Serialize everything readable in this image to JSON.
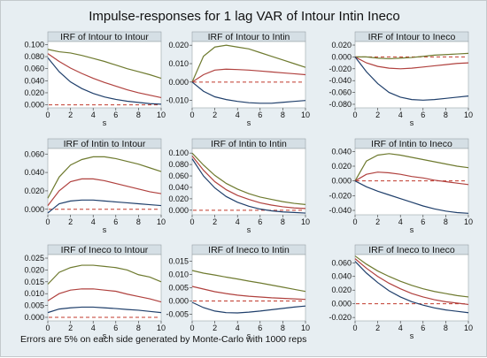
{
  "title": "Impulse-responses for 1 lag VAR of Intour Intin Ineco",
  "footnote": "Errors are 5% on each side generated by Monte-Carlo with 1000 reps",
  "colors": {
    "background": "#e7eef2",
    "plot_bg": "#ffffff",
    "title_band": "#d5dfe5",
    "upper": "#6e7a2f",
    "irf": "#b0413e",
    "lower": "#1f3f6b",
    "zero": "#c0392b"
  },
  "chart_data": [
    {
      "type": "line",
      "title": "IRF of Intour to Intour",
      "xlabel": "s",
      "x": [
        0,
        1,
        2,
        3,
        4,
        5,
        6,
        7,
        8,
        9,
        10
      ],
      "xticks": [
        "0",
        "2",
        "4",
        "6",
        "8",
        "10"
      ],
      "ylim": [
        -0.005,
        0.105
      ],
      "yticks": [
        "0.000",
        "0.020",
        "0.040",
        "0.060",
        "0.080",
        "0.100"
      ],
      "ytick_values": [
        0,
        0.02,
        0.04,
        0.06,
        0.08,
        0.1
      ],
      "series": [
        {
          "role": "upper",
          "values": [
            0.092,
            0.088,
            0.086,
            0.082,
            0.077,
            0.072,
            0.066,
            0.06,
            0.055,
            0.05,
            0.044
          ]
        },
        {
          "role": "irf",
          "values": [
            0.085,
            0.072,
            0.061,
            0.052,
            0.044,
            0.037,
            0.031,
            0.025,
            0.02,
            0.016,
            0.012
          ]
        },
        {
          "role": "lower",
          "values": [
            0.078,
            0.055,
            0.038,
            0.027,
            0.019,
            0.013,
            0.009,
            0.006,
            0.004,
            0.002,
            0.001
          ]
        }
      ]
    },
    {
      "type": "line",
      "title": "IRF of Intour to Intin",
      "xlabel": "s",
      "x": [
        0,
        1,
        2,
        3,
        4,
        5,
        6,
        7,
        8,
        9,
        10
      ],
      "xticks": [
        "0",
        "2",
        "4",
        "6",
        "8",
        "10"
      ],
      "ylim": [
        -0.014,
        0.022
      ],
      "yticks": [
        "-0.010",
        "0.000",
        "0.010",
        "0.020"
      ],
      "ytick_values": [
        -0.01,
        0,
        0.01,
        0.02
      ],
      "series": [
        {
          "role": "upper",
          "values": [
            0.0,
            0.014,
            0.019,
            0.02,
            0.019,
            0.018,
            0.016,
            0.014,
            0.012,
            0.01,
            0.008
          ]
        },
        {
          "role": "irf",
          "values": [
            0.0,
            0.004,
            0.0065,
            0.007,
            0.0068,
            0.0065,
            0.006,
            0.0055,
            0.005,
            0.0045,
            0.004
          ]
        },
        {
          "role": "lower",
          "values": [
            0.0,
            -0.005,
            -0.008,
            -0.0095,
            -0.0105,
            -0.0112,
            -0.0115,
            -0.0115,
            -0.011,
            -0.0105,
            -0.01
          ]
        }
      ]
    },
    {
      "type": "line",
      "title": "IRF of Intour to Ineco",
      "xlabel": "s",
      "x": [
        0,
        1,
        2,
        3,
        4,
        5,
        6,
        7,
        8,
        9,
        10
      ],
      "xticks": [
        "0",
        "2",
        "4",
        "6",
        "8",
        "10"
      ],
      "ylim": [
        -0.086,
        0.026
      ],
      "yticks": [
        "-0.080",
        "-0.060",
        "-0.040",
        "-0.020",
        "0.000",
        "0.020"
      ],
      "ytick_values": [
        -0.08,
        -0.06,
        -0.04,
        -0.02,
        0,
        0.02
      ],
      "series": [
        {
          "role": "upper",
          "values": [
            0.0,
            0.0,
            -0.002,
            -0.003,
            -0.002,
            -0.001,
            0.001,
            0.003,
            0.004,
            0.005,
            0.006
          ]
        },
        {
          "role": "irf",
          "values": [
            0.0,
            -0.01,
            -0.016,
            -0.019,
            -0.02,
            -0.019,
            -0.017,
            -0.015,
            -0.013,
            -0.011,
            -0.01
          ]
        },
        {
          "role": "lower",
          "values": [
            0.0,
            -0.025,
            -0.045,
            -0.06,
            -0.068,
            -0.072,
            -0.073,
            -0.072,
            -0.07,
            -0.068,
            -0.066
          ]
        }
      ]
    },
    {
      "type": "line",
      "title": "IRF of Intin to Intour",
      "xlabel": "s",
      "x": [
        0,
        1,
        2,
        3,
        4,
        5,
        6,
        7,
        8,
        9,
        10
      ],
      "xticks": [
        "0",
        "2",
        "4",
        "6",
        "8",
        "10"
      ],
      "ylim": [
        -0.006,
        0.066
      ],
      "yticks": [
        "0.000",
        "0.020",
        "0.040",
        "0.060"
      ],
      "ytick_values": [
        0,
        0.02,
        0.04,
        0.06
      ],
      "series": [
        {
          "role": "upper",
          "values": [
            0.012,
            0.035,
            0.048,
            0.054,
            0.057,
            0.057,
            0.055,
            0.052,
            0.049,
            0.045,
            0.041
          ]
        },
        {
          "role": "irf",
          "values": [
            0.004,
            0.02,
            0.03,
            0.033,
            0.033,
            0.031,
            0.028,
            0.025,
            0.022,
            0.019,
            0.017
          ]
        },
        {
          "role": "lower",
          "values": [
            -0.004,
            0.006,
            0.009,
            0.01,
            0.01,
            0.009,
            0.008,
            0.007,
            0.006,
            0.005,
            0.004
          ]
        }
      ]
    },
    {
      "type": "line",
      "title": "IRF of Intin to Intin",
      "xlabel": "s",
      "x": [
        0,
        1,
        2,
        3,
        4,
        5,
        6,
        7,
        8,
        9,
        10
      ],
      "xticks": [
        "0",
        "2",
        "4",
        "6",
        "8",
        "10"
      ],
      "ylim": [
        -0.008,
        0.108
      ],
      "yticks": [
        "0.000",
        "0.020",
        "0.040",
        "0.060",
        "0.080",
        "0.100"
      ],
      "ytick_values": [
        0,
        0.02,
        0.04,
        0.06,
        0.08,
        0.1
      ],
      "series": [
        {
          "role": "upper",
          "values": [
            0.1,
            0.079,
            0.061,
            0.047,
            0.037,
            0.029,
            0.023,
            0.019,
            0.015,
            0.012,
            0.01
          ]
        },
        {
          "role": "irf",
          "values": [
            0.095,
            0.07,
            0.05,
            0.036,
            0.026,
            0.019,
            0.013,
            0.009,
            0.006,
            0.004,
            0.003
          ]
        },
        {
          "role": "lower",
          "values": [
            0.09,
            0.06,
            0.039,
            0.024,
            0.014,
            0.007,
            0.002,
            -0.001,
            -0.003,
            -0.004,
            -0.005
          ]
        }
      ]
    },
    {
      "type": "line",
      "title": "IRF of Intin to Ineco",
      "xlabel": "s",
      "x": [
        0,
        1,
        2,
        3,
        4,
        5,
        6,
        7,
        8,
        9,
        10
      ],
      "xticks": [
        "0",
        "2",
        "4",
        "6",
        "8",
        "10"
      ],
      "ylim": [
        -0.046,
        0.044
      ],
      "yticks": [
        "-0.040",
        "-0.020",
        "0.000",
        "0.020",
        "0.040"
      ],
      "ytick_values": [
        -0.04,
        -0.02,
        0,
        0.02,
        0.04
      ],
      "series": [
        {
          "role": "upper",
          "values": [
            0.0,
            0.027,
            0.035,
            0.037,
            0.035,
            0.032,
            0.029,
            0.026,
            0.023,
            0.02,
            0.018
          ]
        },
        {
          "role": "irf",
          "values": [
            0.0,
            0.009,
            0.012,
            0.011,
            0.009,
            0.006,
            0.004,
            0.001,
            -0.001,
            -0.003,
            -0.005
          ]
        },
        {
          "role": "lower",
          "values": [
            0.0,
            -0.008,
            -0.014,
            -0.019,
            -0.024,
            -0.029,
            -0.034,
            -0.038,
            -0.041,
            -0.043,
            -0.044
          ]
        }
      ]
    },
    {
      "type": "line",
      "title": "IRF of Ineco to Intour",
      "xlabel": "s",
      "x": [
        0,
        1,
        2,
        3,
        4,
        5,
        6,
        7,
        8,
        9,
        10
      ],
      "xticks": [
        "0",
        "2",
        "4",
        "6",
        "8",
        "10"
      ],
      "ylim": [
        -0.0015,
        0.0265
      ],
      "yticks": [
        "0.000",
        "0.005",
        "0.010",
        "0.015",
        "0.020",
        "0.025"
      ],
      "ytick_values": [
        0,
        0.005,
        0.01,
        0.015,
        0.02,
        0.025
      ],
      "series": [
        {
          "role": "upper",
          "values": [
            0.014,
            0.019,
            0.021,
            0.022,
            0.022,
            0.0215,
            0.021,
            0.02,
            0.018,
            0.017,
            0.015
          ]
        },
        {
          "role": "irf",
          "values": [
            0.007,
            0.01,
            0.0115,
            0.012,
            0.012,
            0.0115,
            0.011,
            0.0098,
            0.0088,
            0.0078,
            0.0065
          ]
        },
        {
          "role": "lower",
          "values": [
            0.002,
            0.0035,
            0.004,
            0.0043,
            0.0043,
            0.004,
            0.0037,
            0.0033,
            0.003,
            0.0025,
            0.002
          ]
        }
      ]
    },
    {
      "type": "line",
      "title": "IRF of Ineco to Intin",
      "xlabel": "s",
      "x": [
        0,
        1,
        2,
        3,
        4,
        5,
        6,
        7,
        8,
        9,
        10
      ],
      "xticks": [
        "0",
        "2",
        "4",
        "6",
        "8",
        "10"
      ],
      "ylim": [
        -0.0075,
        0.0175
      ],
      "yticks": [
        "-0.005",
        "0.000",
        "0.005",
        "0.010",
        "0.015"
      ],
      "ytick_values": [
        -0.005,
        0,
        0.005,
        0.01,
        0.015
      ],
      "series": [
        {
          "role": "upper",
          "values": [
            0.0115,
            0.0105,
            0.0098,
            0.009,
            0.0083,
            0.0075,
            0.0068,
            0.006,
            0.0052,
            0.0044,
            0.0036
          ]
        },
        {
          "role": "irf",
          "values": [
            0.0055,
            0.0045,
            0.0035,
            0.0028,
            0.0022,
            0.0018,
            0.0015,
            0.0012,
            0.001,
            0.0008,
            0.0006
          ]
        },
        {
          "role": "lower",
          "values": [
            -0.0005,
            -0.0025,
            -0.0038,
            -0.0044,
            -0.0045,
            -0.0042,
            -0.0038,
            -0.0033,
            -0.0028,
            -0.0023,
            -0.0019
          ]
        }
      ]
    },
    {
      "type": "line",
      "title": "IRF of Ineco to Ineco",
      "xlabel": "s",
      "x": [
        0,
        1,
        2,
        3,
        4,
        5,
        6,
        7,
        8,
        9,
        10
      ],
      "xticks": [
        "0",
        "2",
        "4",
        "6",
        "8",
        "10"
      ],
      "ylim": [
        -0.025,
        0.072
      ],
      "yticks": [
        "-0.020",
        "0.000",
        "0.020",
        "0.040",
        "0.060"
      ],
      "ytick_values": [
        -0.02,
        0,
        0.02,
        0.04,
        0.06
      ],
      "series": [
        {
          "role": "upper",
          "values": [
            0.07,
            0.058,
            0.048,
            0.04,
            0.033,
            0.027,
            0.022,
            0.018,
            0.015,
            0.012,
            0.01
          ]
        },
        {
          "role": "irf",
          "values": [
            0.066,
            0.052,
            0.04,
            0.03,
            0.022,
            0.015,
            0.01,
            0.006,
            0.003,
            0.001,
            -0.001
          ]
        },
        {
          "role": "lower",
          "values": [
            0.062,
            0.045,
            0.031,
            0.019,
            0.01,
            0.003,
            -0.002,
            -0.006,
            -0.009,
            -0.011,
            -0.013
          ]
        }
      ]
    }
  ]
}
